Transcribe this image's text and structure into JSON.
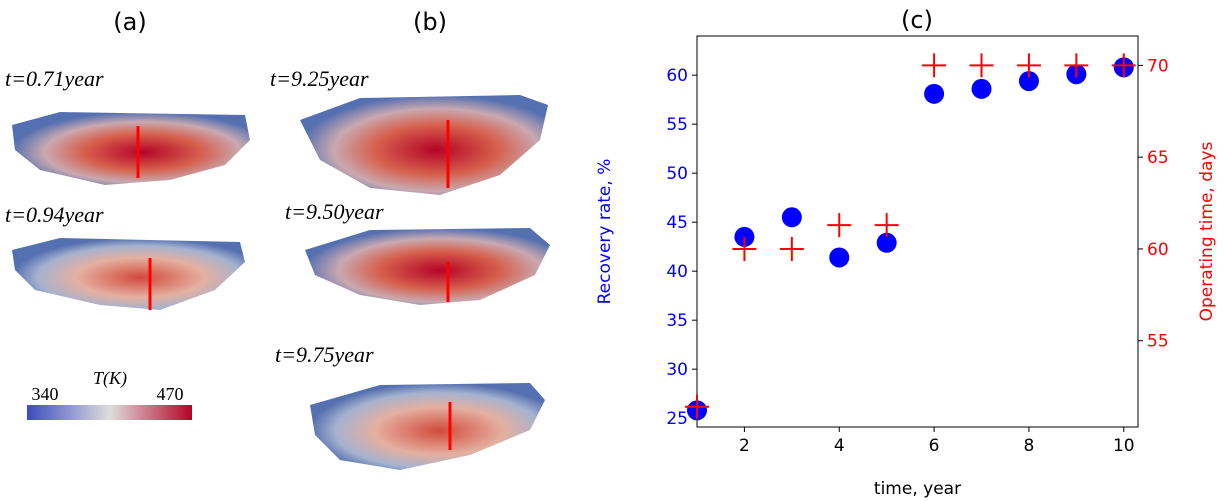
{
  "figure": {
    "panel_labels": [
      "(a)",
      "(b)"
    ],
    "times_a": [
      "t=0.71year",
      "t=0.94year"
    ],
    "times_b": [
      "t=9.25year",
      "t=9.50year",
      "t=9.75year"
    ],
    "colorbar": {
      "title": "T(K)",
      "min": "340",
      "max": "470"
    }
  },
  "chart_data": {
    "type": "scatter",
    "title": "(c)",
    "xlabel": "time, year",
    "ylabel": "Recovery rate, %",
    "y2label": "Operating time, days",
    "x": [
      1,
      2,
      3,
      4,
      5,
      6,
      7,
      8,
      9,
      10
    ],
    "series": [
      {
        "color": "#0000ff",
        "marker": "circle",
        "values": [
          25.8,
          43.5,
          45.5,
          41.4,
          42.9,
          58.1,
          58.6,
          59.4,
          60.1,
          60.8
        ]
      },
      {
        "color": "#ff0000",
        "marker": "plus",
        "axis": "y2",
        "values": [
          51.4,
          60,
          60,
          61.3,
          61.3,
          70,
          70,
          70,
          70,
          70
        ]
      }
    ],
    "xlim": [
      1,
      10.3
    ],
    "xticks": [
      2,
      4,
      6,
      8,
      10
    ],
    "ylim": [
      24.1,
      64
    ],
    "yticks": [
      25,
      30,
      35,
      40,
      45,
      50,
      55,
      60
    ],
    "y2lim": [
      50.3,
      71.6
    ],
    "y2ticks": [
      55,
      60,
      65,
      70
    ]
  }
}
